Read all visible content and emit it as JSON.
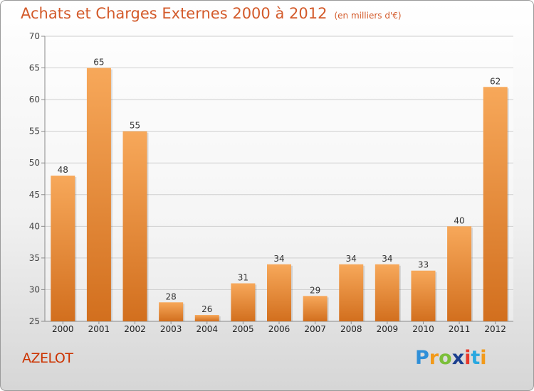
{
  "title": "Achats et Charges Externes 2000 à 2012",
  "unit": "(en milliers d'€)",
  "city": "AZELOT",
  "brand": {
    "letters": [
      "P",
      "r",
      "o",
      "x",
      "i",
      "t",
      "i"
    ],
    "colors": [
      "#2f8fd8",
      "#f29a1a",
      "#7bbf3a",
      "#1b3f8f",
      "#e8392b",
      "#29a8e0",
      "#f29a1a"
    ]
  },
  "colors": {
    "title": "#d35a2a",
    "bar_light": "#f7a85a",
    "bar_dark": "#d26f1e",
    "axis": "#8a8a8a",
    "grid": "#cfcfcf"
  },
  "chart_data": {
    "type": "bar",
    "categories": [
      "2000",
      "2001",
      "2002",
      "2003",
      "2004",
      "2005",
      "2006",
      "2007",
      "2008",
      "2009",
      "2010",
      "2011",
      "2012"
    ],
    "values": [
      48,
      65,
      55,
      28,
      26,
      31,
      34,
      29,
      34,
      34,
      33,
      40,
      62
    ],
    "ylim": [
      25,
      70
    ],
    "yticks": [
      25,
      30,
      35,
      40,
      45,
      50,
      55,
      60,
      65,
      70
    ],
    "grid": true,
    "legend": "none"
  }
}
